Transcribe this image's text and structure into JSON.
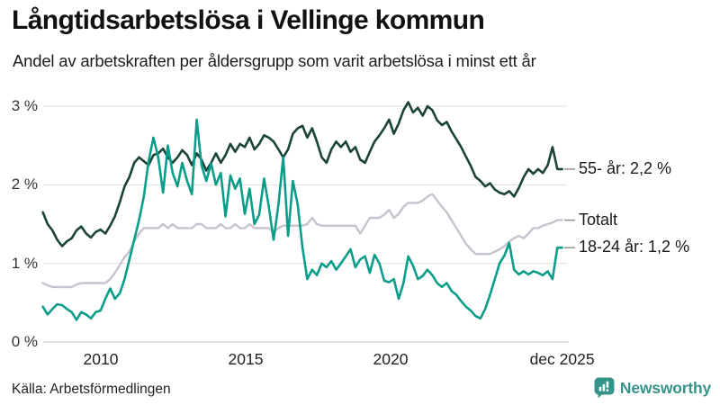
{
  "header": {
    "title": "Långtidsarbetslösa i Vellinge kommun",
    "subtitle": "Andel av arbetskraften per åldersgrupp som varit arbetslösa i minst ett år"
  },
  "chart_data": {
    "type": "line",
    "title": "Långtidsarbetslösa i Vellinge kommun",
    "unit": "%",
    "t_start": 2008.0,
    "t_end": 2025.92,
    "ylim": [
      0,
      3.1
    ],
    "grid": "horizontal",
    "legend_position": "right-end-labels",
    "y_ticks": [
      {
        "value": 0,
        "label": "0 %"
      },
      {
        "value": 1,
        "label": "1 %"
      },
      {
        "value": 2,
        "label": "2 %"
      },
      {
        "value": 3,
        "label": "3 %"
      }
    ],
    "x_ticks": [
      {
        "t": 2010,
        "label": "2010"
      },
      {
        "t": 2015,
        "label": "2015"
      },
      {
        "t": 2020,
        "label": "2020"
      },
      {
        "t": 2025.92,
        "label": "dec 2025"
      }
    ],
    "series": [
      {
        "name": "55- år",
        "label": "55- år: 2,2 %",
        "end_value_text": "2,2 %",
        "color": "#1b4339",
        "values": [
          1.65,
          1.5,
          1.42,
          1.3,
          1.22,
          1.28,
          1.32,
          1.42,
          1.47,
          1.38,
          1.33,
          1.4,
          1.43,
          1.38,
          1.48,
          1.6,
          1.78,
          1.98,
          2.1,
          2.28,
          2.35,
          2.3,
          2.25,
          2.38,
          2.4,
          2.46,
          2.35,
          2.28,
          2.35,
          2.44,
          2.38,
          2.25,
          2.4,
          2.32,
          2.18,
          2.28,
          2.4,
          2.28,
          2.38,
          2.52,
          2.42,
          2.52,
          2.48,
          2.6,
          2.45,
          2.52,
          2.63,
          2.6,
          2.55,
          2.45,
          2.35,
          2.45,
          2.65,
          2.72,
          2.75,
          2.6,
          2.72,
          2.55,
          2.35,
          2.28,
          2.45,
          2.55,
          2.48,
          2.55,
          2.42,
          2.48,
          2.32,
          2.28,
          2.42,
          2.55,
          2.63,
          2.72,
          2.83,
          2.65,
          2.78,
          2.95,
          3.05,
          2.92,
          2.98,
          2.88,
          3.0,
          2.95,
          2.82,
          2.76,
          2.8,
          2.68,
          2.58,
          2.48,
          2.36,
          2.24,
          2.1,
          2.05,
          1.98,
          2.02,
          1.94,
          1.9,
          1.88,
          1.92,
          1.85,
          1.96,
          2.1,
          2.2,
          2.14,
          2.2,
          2.15,
          2.25,
          2.48,
          2.2,
          2.2
        ]
      },
      {
        "name": "Totalt",
        "label": "Totalt",
        "end_value_text": "",
        "color": "#c6c3ce",
        "values": [
          0.75,
          0.72,
          0.7,
          0.7,
          0.7,
          0.7,
          0.7,
          0.73,
          0.75,
          0.75,
          0.75,
          0.75,
          0.75,
          0.75,
          0.8,
          0.88,
          0.98,
          1.08,
          1.15,
          1.28,
          1.38,
          1.45,
          1.45,
          1.45,
          1.45,
          1.5,
          1.45,
          1.5,
          1.45,
          1.45,
          1.45,
          1.45,
          1.5,
          1.5,
          1.45,
          1.45,
          1.45,
          1.5,
          1.45,
          1.45,
          1.5,
          1.45,
          1.45,
          1.5,
          1.45,
          1.45,
          1.45,
          1.45,
          1.4,
          1.45,
          1.48,
          1.48,
          1.48,
          1.48,
          1.48,
          1.5,
          1.58,
          1.5,
          1.48,
          1.48,
          1.48,
          1.48,
          1.48,
          1.48,
          1.48,
          1.48,
          1.38,
          1.48,
          1.58,
          1.58,
          1.58,
          1.62,
          1.68,
          1.58,
          1.63,
          1.72,
          1.77,
          1.77,
          1.77,
          1.8,
          1.85,
          1.88,
          1.8,
          1.72,
          1.65,
          1.55,
          1.45,
          1.35,
          1.25,
          1.18,
          1.12,
          1.12,
          1.12,
          1.12,
          1.15,
          1.18,
          1.22,
          1.28,
          1.32,
          1.35,
          1.32,
          1.38,
          1.45,
          1.45,
          1.48,
          1.5,
          1.52,
          1.55,
          1.55
        ]
      },
      {
        "name": "18-24 år",
        "label": "18-24 år: 1,2 %",
        "end_value_text": "1,2 %",
        "color": "#0a9e8a",
        "values": [
          0.45,
          0.35,
          0.42,
          0.48,
          0.47,
          0.42,
          0.38,
          0.28,
          0.38,
          0.35,
          0.3,
          0.38,
          0.4,
          0.55,
          0.68,
          0.55,
          0.62,
          0.8,
          1.05,
          1.3,
          1.55,
          1.85,
          2.3,
          2.6,
          2.35,
          1.9,
          2.5,
          2.15,
          1.98,
          2.28,
          2.05,
          1.88,
          2.83,
          2.25,
          2.05,
          2.27,
          2.0,
          2.15,
          1.6,
          2.12,
          1.95,
          2.08,
          1.63,
          1.95,
          1.5,
          1.62,
          2.08,
          1.72,
          1.3,
          1.75,
          2.35,
          1.35,
          2.05,
          1.75,
          1.2,
          0.8,
          0.92,
          0.85,
          1.0,
          0.95,
          1.03,
          0.92,
          1.0,
          1.09,
          1.18,
          0.95,
          1.05,
          1.09,
          0.88,
          1.11,
          1.0,
          0.78,
          0.76,
          0.8,
          0.55,
          0.75,
          1.09,
          0.97,
          0.8,
          0.84,
          0.92,
          0.85,
          0.75,
          0.7,
          0.75,
          0.65,
          0.6,
          0.52,
          0.45,
          0.4,
          0.33,
          0.3,
          0.42,
          0.6,
          0.8,
          1.0,
          1.1,
          1.26,
          0.92,
          0.86,
          0.9,
          0.86,
          0.9,
          0.88,
          0.85,
          0.9,
          0.8,
          1.2,
          1.2
        ]
      }
    ]
  },
  "footer": {
    "source": "Källa: Arbetsförmedlingen",
    "brand": "Newsworthy",
    "brand_color": "#35948a"
  },
  "colors": {
    "grid": "#dfdfdf",
    "zero_line": "#c5c5c5",
    "annotation_dash": "#8a8a8a"
  }
}
